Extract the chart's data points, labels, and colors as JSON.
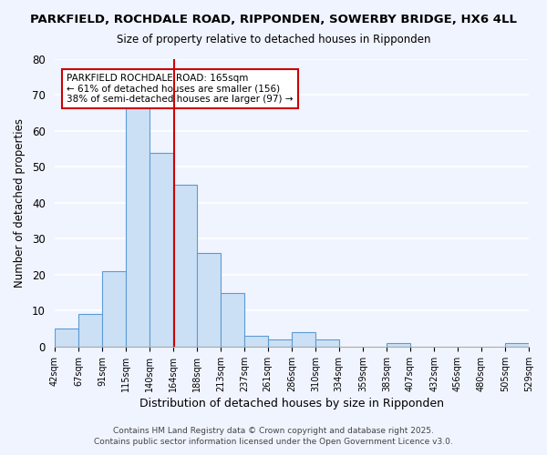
{
  "title_line1": "PARKFIELD, ROCHDALE ROAD, RIPPONDEN, SOWERBY BRIDGE, HX6 4LL",
  "title_line2": "Size of property relative to detached houses in Ripponden",
  "xlabel": "Distribution of detached houses by size in Ripponden",
  "ylabel": "Number of detached properties",
  "bar_color": "#cce0f5",
  "bar_edge_color": "#5b9bd5",
  "background_color": "#f0f4ff",
  "grid_color": "#ffffff",
  "bin_edges": [
    42,
    67,
    91,
    115,
    140,
    164,
    188,
    213,
    237,
    261,
    286,
    310,
    334,
    359,
    383,
    407,
    432,
    456,
    480,
    505,
    529
  ],
  "bin_labels": [
    "42sqm",
    "67sqm",
    "91sqm",
    "115sqm",
    "140sqm",
    "164sqm",
    "188sqm",
    "213sqm",
    "237sqm",
    "261sqm",
    "286sqm",
    "310sqm",
    "334sqm",
    "359sqm",
    "383sqm",
    "407sqm",
    "432sqm",
    "456sqm",
    "480sqm",
    "505sqm",
    "529sqm"
  ],
  "counts": [
    5,
    9,
    21,
    67,
    54,
    45,
    26,
    15,
    3,
    2,
    4,
    2,
    0,
    0,
    1,
    0,
    0,
    0,
    0,
    1
  ],
  "vline_x": 165,
  "vline_color": "#cc0000",
  "annotation_text": "PARKFIELD ROCHDALE ROAD: 165sqm\n← 61% of detached houses are smaller (156)\n38% of semi-detached houses are larger (97) →",
  "annotation_box_color": "#ffffff",
  "annotation_box_edge": "#cc0000",
  "ylim": [
    0,
    80
  ],
  "yticks": [
    0,
    10,
    20,
    30,
    40,
    50,
    60,
    70,
    80
  ],
  "footer_line1": "Contains HM Land Registry data © Crown copyright and database right 2025.",
  "footer_line2": "Contains public sector information licensed under the Open Government Licence v3.0."
}
